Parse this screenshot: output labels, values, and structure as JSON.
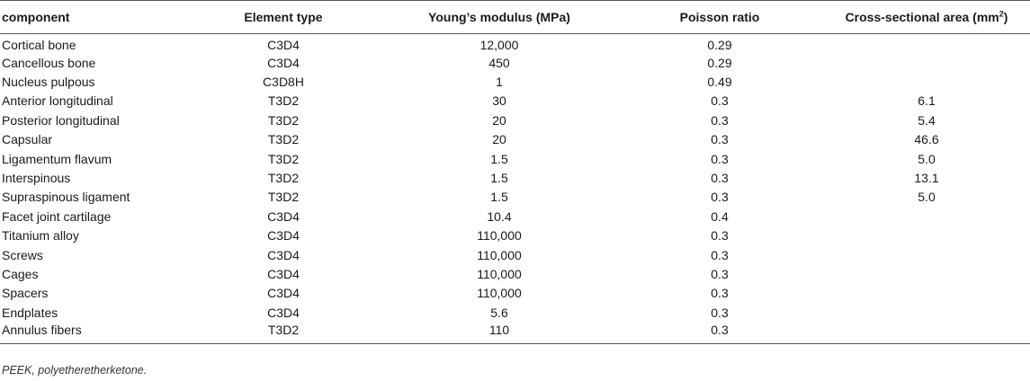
{
  "table": {
    "headers": [
      "component",
      "Element type",
      "Young’s modulus (MPa)",
      "Poisson ratio",
      "Cross-sectional area (mm"
    ],
    "area_unit_sup": "2",
    "area_unit_close": ")",
    "rows": [
      [
        "Cortical bone",
        "C3D4",
        "12,000",
        "0.29",
        ""
      ],
      [
        "Cancellous bone",
        "C3D4",
        "450",
        "0.29",
        ""
      ],
      [
        "Nucleus pulpous",
        "C3D8H",
        "1",
        "0.49",
        ""
      ],
      [
        "Anterior longitudinal",
        "T3D2",
        "30",
        "0.3",
        "6.1"
      ],
      [
        "Posterior longitudinal",
        "T3D2",
        "20",
        "0.3",
        "5.4"
      ],
      [
        "Capsular",
        "T3D2",
        "20",
        "0.3",
        "46.6"
      ],
      [
        "Ligamentum flavum",
        "T3D2",
        "1.5",
        "0.3",
        "5.0"
      ],
      [
        "Interspinous",
        "T3D2",
        "1.5",
        "0.3",
        "13.1"
      ],
      [
        "Supraspinous ligament",
        "T3D2",
        "1.5",
        "0.3",
        "5.0"
      ],
      [
        "Facet joint cartilage",
        "C3D4",
        "10.4",
        "0.4",
        ""
      ],
      [
        "Titanium alloy",
        "C3D4",
        "110,000",
        "0.3",
        ""
      ],
      [
        "Screws",
        "C3D4",
        "110,000",
        "0.3",
        ""
      ],
      [
        "Cages",
        "C3D4",
        "110,000",
        "0.3",
        ""
      ],
      [
        "Spacers",
        "C3D4",
        "110,000",
        "0.3",
        ""
      ],
      [
        "Endplates",
        "C3D4",
        "5.6",
        "0.3",
        ""
      ],
      [
        "Annulus fibers",
        "T3D2",
        "110",
        "0.3",
        ""
      ]
    ]
  },
  "footnote": "PEEK, polyetheretherketone."
}
